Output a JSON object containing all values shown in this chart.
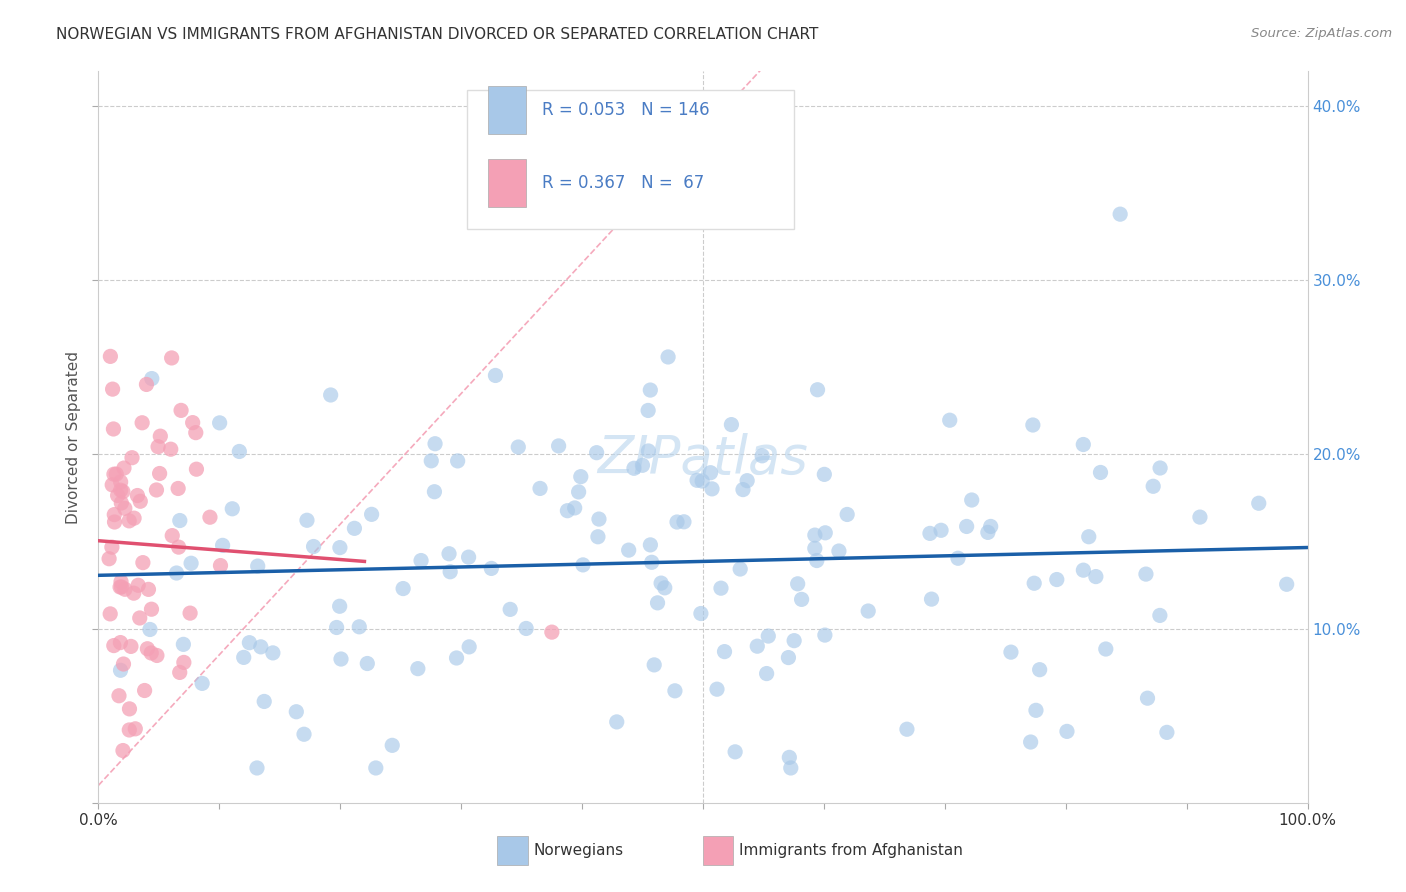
{
  "title": "NORWEGIAN VS IMMIGRANTS FROM AFGHANISTAN DIVORCED OR SEPARATED CORRELATION CHART",
  "source": "Source: ZipAtlas.com",
  "ylabel": "Divorced or Separated",
  "xlim": [
    0,
    1.0
  ],
  "ylim": [
    0,
    0.42
  ],
  "R_norwegian": 0.053,
  "N_norwegian": 146,
  "R_afghanistan": 0.367,
  "N_afghanistan": 67,
  "color_norwegian": "#a8c8e8",
  "color_afghanistan": "#f4a0b5",
  "trendline_norwegian": "#1a5fa8",
  "trendline_afghanistan": "#e05070",
  "diag_color": "#f4a0b5",
  "watermark": "ZIPatlas",
  "seed_norwegian": 12,
  "seed_afghanistan": 99,
  "title_fontsize": 11,
  "label_fontsize": 11,
  "tick_fontsize": 11,
  "right_tick_color": "#4a90d9",
  "legend_nor_label": "Norwegians",
  "legend_afg_label": "Immigrants from Afghanistan"
}
